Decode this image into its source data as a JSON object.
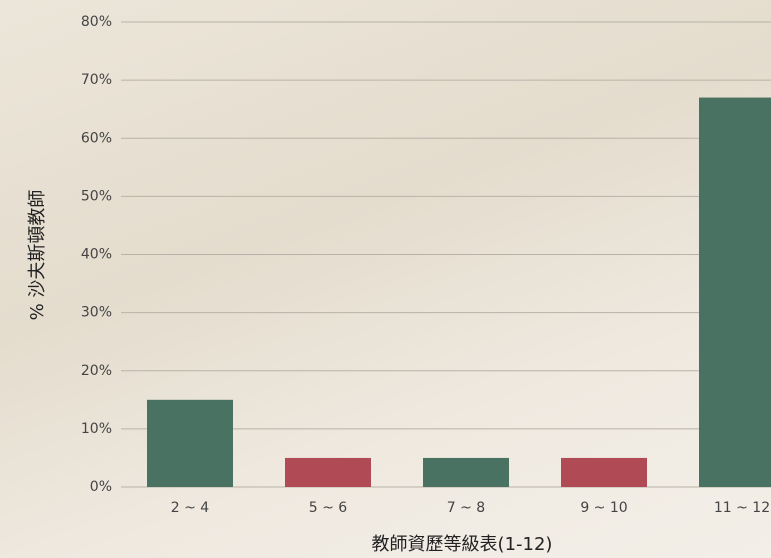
{
  "chart_data": {
    "type": "bar",
    "categories": [
      "2 ~ 4",
      "5 ~ 6",
      "7 ~ 8",
      "9 ~ 10",
      "11 ~ 12"
    ],
    "values": [
      15,
      5,
      5,
      5,
      67
    ],
    "colors": [
      "#4a7262",
      "#b04a55",
      "#4a7262",
      "#b04a55",
      "#4a7262"
    ],
    "x_label": "教師資歷等級表(1-12)",
    "y_label": "% 沙夫斯頓教師",
    "ylim": [
      0,
      80
    ],
    "yticks": [
      {
        "value": 0,
        "label": "0%"
      },
      {
        "value": 10,
        "label": "10%"
      },
      {
        "value": 20,
        "label": "20%"
      },
      {
        "value": 30,
        "label": "30%"
      },
      {
        "value": 40,
        "label": "40%"
      },
      {
        "value": 50,
        "label": "50%"
      },
      {
        "value": 60,
        "label": "60%"
      },
      {
        "value": 70,
        "label": "70%"
      },
      {
        "value": 80,
        "label": "80%"
      }
    ],
    "grid": true
  }
}
